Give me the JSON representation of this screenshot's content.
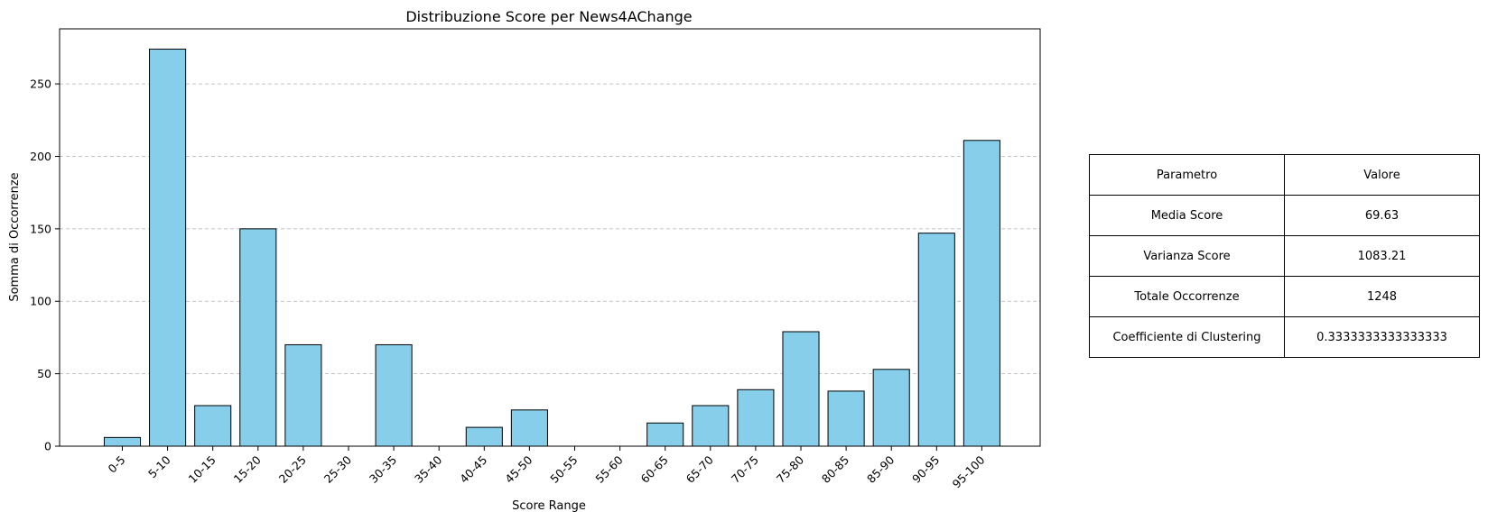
{
  "chart_data": {
    "type": "bar",
    "title": "Distribuzione Score per News4AChange",
    "xlabel": "Score Range",
    "ylabel": "Somma di Occorrenze",
    "categories": [
      "0-5",
      "5-10",
      "10-15",
      "15-20",
      "20-25",
      "25-30",
      "30-35",
      "35-40",
      "40-45",
      "45-50",
      "50-55",
      "55-60",
      "60-65",
      "65-70",
      "70-75",
      "75-80",
      "80-85",
      "85-90",
      "90-95",
      "95-100"
    ],
    "values": [
      6,
      274,
      28,
      150,
      70,
      0,
      70,
      0,
      13,
      25,
      0,
      0,
      16,
      28,
      39,
      79,
      38,
      53,
      147,
      211
    ],
    "ylim": [
      0,
      288
    ],
    "yticks": [
      "0",
      "50",
      "100",
      "150",
      "200",
      "250"
    ],
    "grid": "y-dashed",
    "bar_color": "#87ceeb",
    "edge_color": "#000000"
  },
  "table": {
    "header": [
      "Parametro",
      "Valore"
    ],
    "rows": [
      [
        "Media Score",
        "69.63"
      ],
      [
        "Varianza Score",
        "1083.21"
      ],
      [
        "Totale Occorrenze",
        "1248"
      ],
      [
        "Coefficiente di Clustering",
        "0.3333333333333333"
      ]
    ]
  }
}
